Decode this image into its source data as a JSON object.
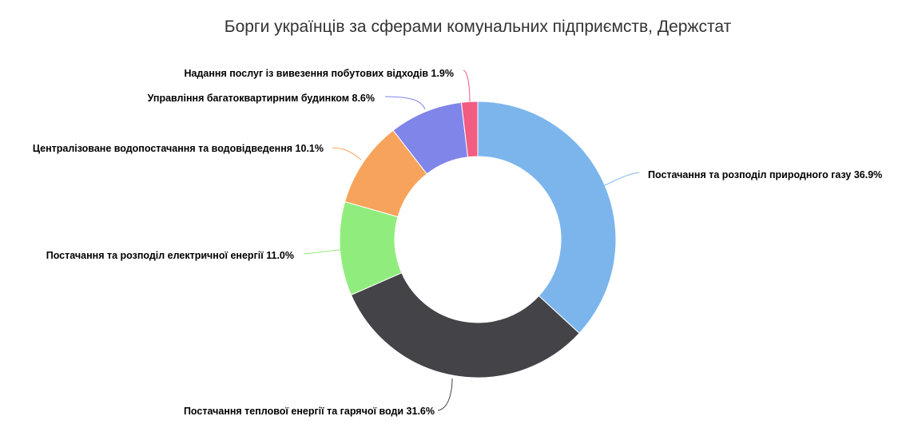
{
  "chart_data": {
    "type": "pie",
    "variant": "donut",
    "title": "Борги українців за сферами комунальних підприємств, Держстат",
    "slices": [
      {
        "name": "Постачання та розподіл природного газу",
        "value": 36.9,
        "label": "Постачання та розподіл природного газу 36.9%",
        "color": "#7cb5ec"
      },
      {
        "name": "Постачання теплової енергії та гарячої води",
        "value": 31.6,
        "label": "Постачання теплової енергії та гарячої води 31.6%",
        "color": "#434348"
      },
      {
        "name": "Постачання та розподіл електричної енергії",
        "value": 11.0,
        "label": "Постачання та розподіл електричної енергії 11.0%",
        "color": "#90ed7d"
      },
      {
        "name": "Централізоване водопостачання та водовідведення",
        "value": 10.1,
        "label": "Централізоване водопостачання та водовідведення 10.1%",
        "color": "#f7a35c"
      },
      {
        "name": "Управління багатоквартирним будинком",
        "value": 8.6,
        "label": "Управління багатоквартирним будинком 8.6%",
        "color": "#8085e9"
      },
      {
        "name": "Надання послуг із вивезення побутових відходів",
        "value": 1.9,
        "label": "Надання послуг із вивезення побутових відходів 1.9%",
        "color": "#f15c80"
      }
    ],
    "unit": "%"
  }
}
